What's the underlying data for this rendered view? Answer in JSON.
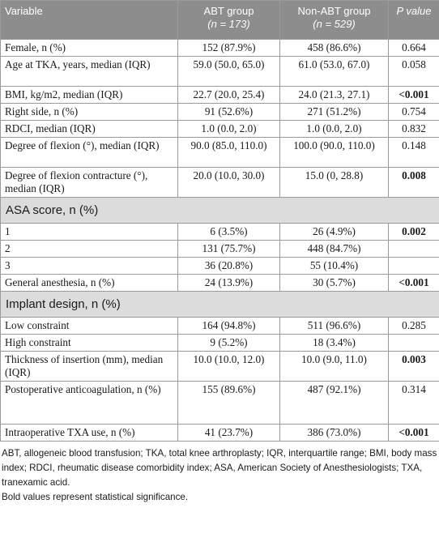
{
  "header": {
    "variable": "Variable",
    "abt_group": "ABT group",
    "abt_n": "(n = 173)",
    "non_abt_group": "Non-ABT group",
    "non_abt_n": "(n = 529)",
    "p_value": "P value"
  },
  "rows_top": [
    {
      "variable": "Female, n (%)",
      "abt": "152 (87.9%)",
      "non_abt": "458 (86.6%)",
      "p": "0.664",
      "bold": false
    },
    {
      "variable": "Age at TKA, years, median (IQR)",
      "abt": "59.0 (50.0, 65.0)",
      "non_abt": "61.0 (53.0, 67.0)",
      "p": "0.058",
      "bold": false
    },
    {
      "variable": "BMI, kg/m2, median (IQR)",
      "abt": "22.7 (20.0, 25.4)",
      "non_abt": "24.0 (21.3, 27.1)",
      "p": "<0.001",
      "bold": true
    },
    {
      "variable": "Right side, n (%)",
      "abt": "91 (52.6%)",
      "non_abt": "271 (51.2%)",
      "p": "0.754",
      "bold": false
    },
    {
      "variable": "RDCI, median (IQR)",
      "abt": "1.0 (0.0, 2.0)",
      "non_abt": "1.0 (0.0, 2.0)",
      "p": "0.832",
      "bold": false
    },
    {
      "variable": "Degree of flexion (°), median (IQR)",
      "abt": "90.0 (85.0, 110.0)",
      "non_abt": "100.0 (90.0, 110.0)",
      "p": "0.148",
      "bold": false
    },
    {
      "variable": "Degree of flexion contracture (°), median (IQR)",
      "abt": "20.0 (10.0, 30.0)",
      "non_abt": "15.0 (0, 28.8)",
      "p": "0.008",
      "bold": true
    }
  ],
  "section_asa": "ASA score, n (%)",
  "rows_asa": [
    {
      "variable": "1",
      "abt": "6 (3.5%)",
      "non_abt": "26 (4.9%)",
      "p": "0.002",
      "bold": true
    },
    {
      "variable": "2",
      "abt": "131 (75.7%)",
      "non_abt": "448 (84.7%)",
      "p": "",
      "bold": false
    },
    {
      "variable": "3",
      "abt": "36 (20.8%)",
      "non_abt": "55 (10.4%)",
      "p": "",
      "bold": false
    },
    {
      "variable": "General anesthesia, n (%)",
      "abt": "24 (13.9%)",
      "non_abt": "30 (5.7%)",
      "p": "<0.001",
      "bold": true
    }
  ],
  "section_implant": "Implant design, n (%)",
  "rows_implant": [
    {
      "variable": "Low constraint",
      "abt": "164 (94.8%)",
      "non_abt": "511 (96.6%)",
      "p": "0.285",
      "bold": false
    },
    {
      "variable": "High constraint",
      "abt": "9 (5.2%)",
      "non_abt": "18 (3.4%)",
      "p": "",
      "bold": false
    },
    {
      "variable": "Thickness of insertion (mm), median (IQR)",
      "abt": "10.0 (10.0, 12.0)",
      "non_abt": "10.0 (9.0, 11.0)",
      "p": "0.003",
      "bold": true
    },
    {
      "variable": "Postoperative anticoagulation, n (%)",
      "abt": "155 (89.6%)",
      "non_abt": "487 (92.1%)",
      "p": "0.314",
      "bold": false
    },
    {
      "variable": "Intraoperative TXA use, n (%)",
      "abt": "41 (23.7%)",
      "non_abt": "386 (73.0%)",
      "p": "<0.001",
      "bold": true
    }
  ],
  "footnote_abbrev": "ABT, allogeneic blood transfusion; TKA, total knee arthroplasty; IQR, interquartile range; BMI, body mass index; RDCI, rheumatic disease comorbidity index; ASA, American Society of Anesthesiologists; TXA, tranexamic acid.",
  "footnote_bold": "Bold values represent statistical significance."
}
